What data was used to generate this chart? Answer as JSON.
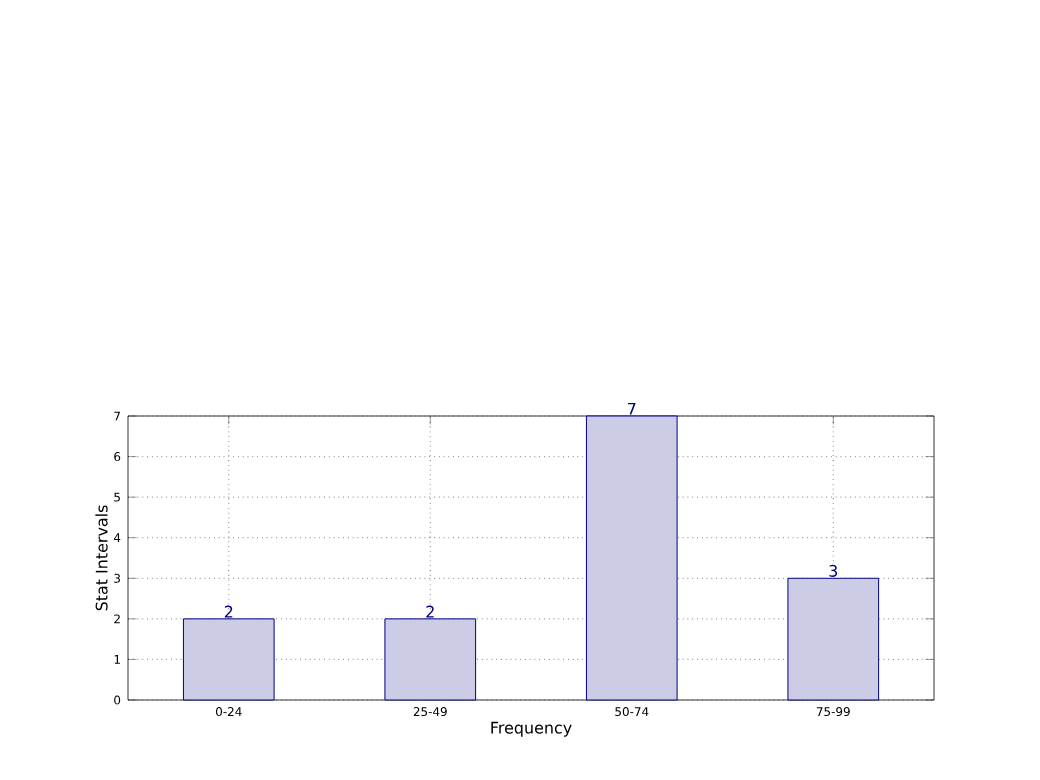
{
  "chart_data": {
    "type": "bar",
    "xlabel": "Frequency",
    "ylabel": "Stat Intervals",
    "categories": [
      "0-24",
      "25-49",
      "50-74",
      "75-99"
    ],
    "values": [
      2,
      2,
      7,
      3
    ],
    "color": "#cccce6",
    "ylim": [
      0,
      7
    ],
    "yticks": [
      0,
      1,
      2,
      3,
      4,
      5,
      6,
      7
    ],
    "grid": true,
    "data_labels": true
  }
}
